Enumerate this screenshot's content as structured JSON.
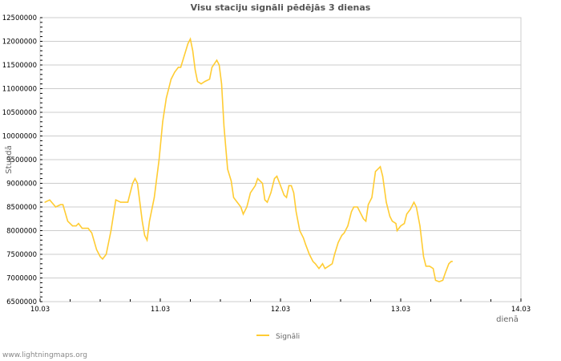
{
  "chart_data": {
    "type": "line",
    "title": "Visu staciju signāli pēdējās 3 dienas",
    "xlabel": "dienā",
    "ylabel": "Stundā",
    "x_tick_labels": [
      "10.03",
      "11.03",
      "12.03",
      "13.03",
      "14.03"
    ],
    "xlim_days": [
      0,
      4
    ],
    "ylim": [
      6500000,
      12500000
    ],
    "y_major_step": 500000,
    "y_tick_labels": [
      "6500000",
      "7000000",
      "7500000",
      "8000000",
      "8500000",
      "9000000",
      "9500000",
      "10000000",
      "10500000",
      "11000000",
      "11500000",
      "12000000",
      "12500000"
    ],
    "grid": true,
    "legend_position": "bottom-center",
    "series": [
      {
        "name": "Signāli",
        "color": "#ffcc33",
        "x_days": [
          0.04,
          0.08,
          0.13,
          0.17,
          0.19,
          0.23,
          0.27,
          0.3,
          0.32,
          0.35,
          0.4,
          0.43,
          0.47,
          0.5,
          0.52,
          0.55,
          0.59,
          0.63,
          0.67,
          0.7,
          0.73,
          0.77,
          0.79,
          0.81,
          0.83,
          0.85,
          0.87,
          0.89,
          0.91,
          0.95,
          0.99,
          1.02,
          1.05,
          1.09,
          1.12,
          1.15,
          1.17,
          1.2,
          1.23,
          1.25,
          1.27,
          1.29,
          1.31,
          1.34,
          1.37,
          1.41,
          1.43,
          1.47,
          1.49,
          1.51,
          1.53,
          1.56,
          1.59,
          1.61,
          1.64,
          1.67,
          1.69,
          1.72,
          1.75,
          1.79,
          1.81,
          1.85,
          1.87,
          1.89,
          1.92,
          1.95,
          1.97,
          2.0,
          2.03,
          2.05,
          2.07,
          2.09,
          2.11,
          2.13,
          2.16,
          2.19,
          2.21,
          2.24,
          2.27,
          2.29,
          2.32,
          2.35,
          2.37,
          2.4,
          2.43,
          2.45,
          2.48,
          2.51,
          2.53,
          2.56,
          2.59,
          2.61,
          2.64,
          2.67,
          2.69,
          2.71,
          2.73,
          2.76,
          2.79,
          2.81,
          2.83,
          2.85,
          2.88,
          2.91,
          2.93,
          2.96,
          2.97,
          3.0,
          3.03,
          3.05,
          3.08,
          3.11,
          3.13,
          3.16,
          3.19,
          3.21,
          3.24,
          3.27,
          3.29,
          3.32,
          3.35,
          3.37,
          3.4,
          3.42,
          3.43
        ],
        "values": [
          8600000,
          8650000,
          8500000,
          8550000,
          8550000,
          8200000,
          8100000,
          8100000,
          8150000,
          8050000,
          8050000,
          7950000,
          7600000,
          7450000,
          7400000,
          7500000,
          8000000,
          8650000,
          8600000,
          8600000,
          8600000,
          9000000,
          9100000,
          9000000,
          8600000,
          8200000,
          7900000,
          7800000,
          8200000,
          8700000,
          9500000,
          10300000,
          10800000,
          11200000,
          11350000,
          11450000,
          11450000,
          11700000,
          11950000,
          12050000,
          11800000,
          11400000,
          11150000,
          11100000,
          11150000,
          11200000,
          11450000,
          11600000,
          11500000,
          11100000,
          10200000,
          9300000,
          9050000,
          8700000,
          8600000,
          8500000,
          8350000,
          8500000,
          8800000,
          8950000,
          9100000,
          9000000,
          8650000,
          8600000,
          8800000,
          9100000,
          9150000,
          8950000,
          8750000,
          8700000,
          8950000,
          8950000,
          8800000,
          8400000,
          8000000,
          7850000,
          7700000,
          7500000,
          7350000,
          7300000,
          7200000,
          7300000,
          7200000,
          7250000,
          7300000,
          7500000,
          7750000,
          7900000,
          7950000,
          8100000,
          8400000,
          8500000,
          8500000,
          8350000,
          8250000,
          8200000,
          8550000,
          8700000,
          9250000,
          9300000,
          9350000,
          9150000,
          8600000,
          8300000,
          8200000,
          8150000,
          8000000,
          8100000,
          8150000,
          8350000,
          8450000,
          8600000,
          8500000,
          8100000,
          7450000,
          7250000,
          7250000,
          7200000,
          6950000,
          6920000,
          6950000,
          7100000,
          7300000,
          7350000,
          7350000
        ]
      }
    ]
  },
  "credit": "www.lightningmaps.org"
}
